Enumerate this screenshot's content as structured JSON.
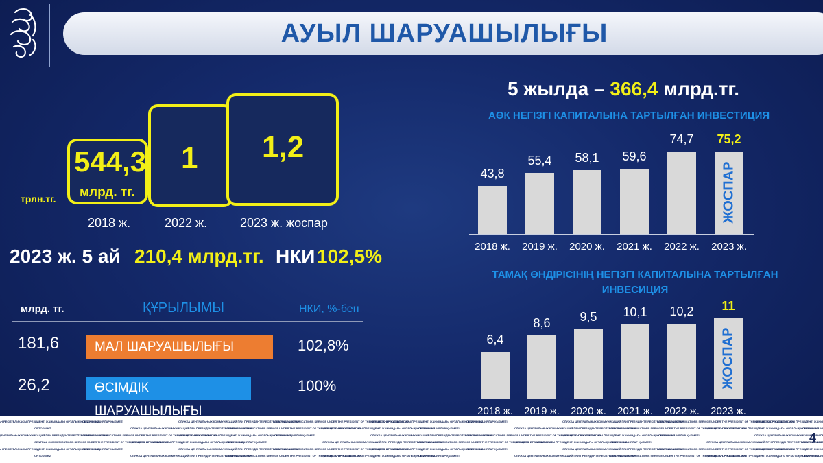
{
  "header": {
    "title": "АУЫЛ ШАРУАШЫЛЫҒЫ"
  },
  "left": {
    "unit_trln": "трлн.тг.",
    "boxes": [
      {
        "value": "544,3",
        "unit": "млрд. тг.",
        "year": "2018 ж."
      },
      {
        "value": "1",
        "year": "2022 ж."
      },
      {
        "value": "1,2",
        "year": "2023 ж. жоспар"
      }
    ],
    "summary": {
      "period": "2023 ж. 5 ай",
      "amount": "210,4 млрд.тг.",
      "nki_label": "НКИ",
      "nki_value": "102,5%"
    },
    "structure": {
      "col_unit": "млрд. тг.",
      "col_title": "ҚҰРЫЛЫМЫ",
      "col_nki": "НКИ, %-бен",
      "rows": [
        {
          "amount": "181,6",
          "label": "МАЛ ШАРУАШЫЛЫҒЫ",
          "nki": "102,8%",
          "color": "#ed7d31"
        },
        {
          "amount": "26,2",
          "label": "ӨСІМДІК ШАРУАШЫЛЫҒЫ",
          "nki": "100%",
          "color": "#1e90e6"
        }
      ]
    }
  },
  "right": {
    "headline_prefix": "5 жылда –",
    "headline_value": "366,4",
    "headline_suffix": "млрд.тг.",
    "plan_label": "ЖОСПАР"
  },
  "colors": {
    "accent_yellow": "#f2ef17",
    "bar_gray": "#d9d9d9",
    "title_blue": "#1f58a8",
    "label_blue": "#1f6fd2"
  },
  "chart_data": [
    {
      "type": "bar",
      "title": "АӨК НЕГІЗГІ КАПИТАЛЫНА  ТАРТЫЛҒАН ИНВЕСТИЦИЯ",
      "categories": [
        "2018 ж.",
        "2019 ж.",
        "2020 ж.",
        "2021 ж.",
        "2022 ж.",
        "2023 ж."
      ],
      "values": [
        43.8,
        55.4,
        58.1,
        59.6,
        74.7,
        75.2
      ],
      "labels": [
        "43,8",
        "55,4",
        "58,1",
        "59,6",
        "74,7",
        "75,2"
      ],
      "highlight_last": true,
      "ylim": [
        0,
        80
      ]
    },
    {
      "type": "bar",
      "title": "ТАМАҚ ӨНДІРІСІНІҢ НЕГІЗГІ КАПИТАЛЫНА ТАРТЫЛҒАН ИНВЕСИЦИЯ",
      "categories": [
        "2018 ж.",
        "2019 ж.",
        "2020 ж.",
        "2021 ж.",
        "2022 ж.",
        "2023 ж."
      ],
      "values": [
        6.4,
        8.6,
        9.5,
        10.1,
        10.2,
        11
      ],
      "labels": [
        "6,4",
        "8,6",
        "9,5",
        "10,1",
        "10,2",
        "11"
      ],
      "highlight_last": true,
      "ylim": [
        0,
        12
      ]
    }
  ],
  "footer": {
    "labels": [
      "ҚАЗАҚСТАН РЕСПУБЛИКАСЫ ПРЕЗИДЕНТІ ЖАНЫНДАҒЫ ОРТАЛЫҚ КОММУНИКАЦИЯЛАР ҚЫЗМЕТІ",
      "ORTCOM.KZ",
      "СЛУЖБА ЦЕНТРАЛЬНЫХ КОММУНИКАЦИЙ ПРИ ПРЕЗИДЕНТЕ РЕСПУБЛИКИ КАЗАХСТАН",
      "CENTRAL COMMUNICATIONS SERVICE UNDER THE PRESIDENT OF THE REPUBLIC OF KAZAKHSTAN"
    ],
    "page_number": "4"
  }
}
